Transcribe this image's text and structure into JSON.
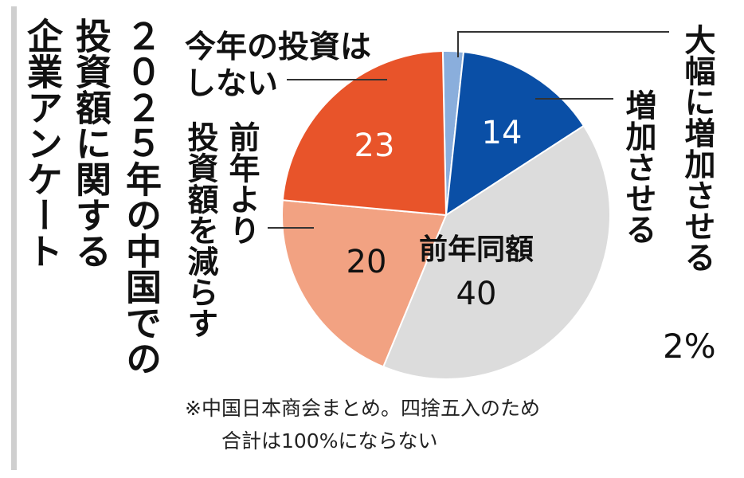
{
  "title": "２０２５年の中国での投資額に関する企業アンケート",
  "title_lines": [
    "２０２５年の中国での",
    "投資額に関する",
    "企業アンケート"
  ],
  "note_lines": [
    "※中国日本商会まとめ。四捨五入のため",
    "合計は100%にならない"
  ],
  "chart_data": {
    "type": "pie",
    "unit": "%",
    "slices": [
      {
        "label": "大幅に増加させる",
        "value": 2,
        "display": "2%",
        "color": "#8aaedc"
      },
      {
        "label": "増加させる",
        "value": 14,
        "display": "14",
        "color": "#0a4fa6"
      },
      {
        "label": "前年同額",
        "value": 40,
        "display": "40",
        "color": "#dcdcdc"
      },
      {
        "label": "前年より投資額を減らす",
        "value": 20,
        "display": "20",
        "color": "#f2a282"
      },
      {
        "label": "今年の投資はしない",
        "value": 23,
        "display": "23",
        "color": "#e8542a"
      }
    ],
    "category_labels": {
      "large_increase": "大幅に増加させる",
      "increase": "増加させる",
      "same": "前年同額",
      "decrease_line1": "前年より",
      "decrease_line2": "投資額を減らす",
      "none_line1": "今年の投資は",
      "none_line2": "しない"
    }
  }
}
